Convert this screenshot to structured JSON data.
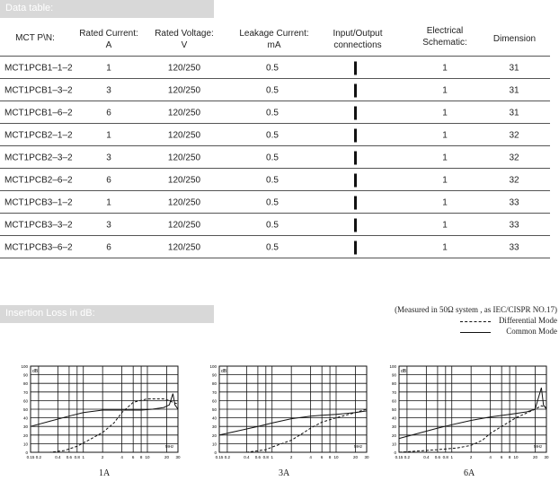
{
  "data_table": {
    "title": "Data table:",
    "headers": [
      {
        "line1": "MCT P\\N:",
        "line2": ""
      },
      {
        "line1": "Rated Current:",
        "line2": "A"
      },
      {
        "line1": "Rated Voltage:",
        "line2": "V"
      },
      {
        "line1": "Leakage  Current:",
        "line2": "mA"
      },
      {
        "line1": "Input/Output",
        "line2": "connections"
      },
      {
        "line1": "Electrical",
        "line2": "Schematic:"
      },
      {
        "line1": "Dimension",
        "line2": ""
      }
    ],
    "rows": [
      {
        "pn": "MCT1PCB1–1–2",
        "current": "1",
        "voltage": "120/250",
        "leakage": "0.5",
        "schematic": "1",
        "dimension": "31"
      },
      {
        "pn": "MCT1PCB1–3–2",
        "current": "3",
        "voltage": "120/250",
        "leakage": "0.5",
        "schematic": "1",
        "dimension": "31"
      },
      {
        "pn": "MCT1PCB1–6–2",
        "current": "6",
        "voltage": "120/250",
        "leakage": "0.5",
        "schematic": "1",
        "dimension": "31"
      },
      {
        "pn": "MCT1PCB2–1–2",
        "current": "1",
        "voltage": "120/250",
        "leakage": "0.5",
        "schematic": "1",
        "dimension": "32"
      },
      {
        "pn": "MCT1PCB2–3–2",
        "current": "3",
        "voltage": "120/250",
        "leakage": "0.5",
        "schematic": "1",
        "dimension": "32"
      },
      {
        "pn": "MCT1PCB2–6–2",
        "current": "6",
        "voltage": "120/250",
        "leakage": "0.5",
        "schematic": "1",
        "dimension": "32"
      },
      {
        "pn": "MCT1PCB3–1–2",
        "current": "1",
        "voltage": "120/250",
        "leakage": "0.5",
        "schematic": "1",
        "dimension": "33"
      },
      {
        "pn": "MCT1PCB3–3–2",
        "current": "3",
        "voltage": "120/250",
        "leakage": "0.5",
        "schematic": "1",
        "dimension": "33"
      },
      {
        "pn": "MCT1PCB3–6–2",
        "current": "6",
        "voltage": "120/250",
        "leakage": "0.5",
        "schematic": "1",
        "dimension": "33"
      }
    ]
  },
  "insertion_loss": {
    "title": "Insertion Loss in dB:",
    "measurement_note": "(Measured in 50Ω system , as IEC/CISPR NO.17)",
    "legend_differential": "Differential  Mode",
    "legend_common": "Common  Mode"
  },
  "colors": {
    "bar_bg": "#d8d8d8",
    "ink": "#111111"
  },
  "chart_data": [
    {
      "type": "line",
      "caption": "1A",
      "ylabel": "dB",
      "xunit": "MHz",
      "y_ticks": [
        "100",
        "90",
        "80",
        "70",
        "60",
        "50",
        "40",
        "30",
        "20",
        "10",
        "0"
      ],
      "x_ticks": [
        "0.15",
        "0.2",
        "0.4",
        "0.6",
        "0.8",
        "1",
        "2",
        "4",
        "6",
        "8",
        "10",
        "20",
        "30"
      ],
      "xlim": [
        0.15,
        30
      ],
      "ylim": [
        0,
        100
      ],
      "xscale": "log",
      "series": [
        {
          "mode": "common",
          "x": [
            0.15,
            0.3,
            0.6,
            1,
            2,
            4,
            8,
            12,
            18,
            22,
            25,
            27,
            30
          ],
          "y": [
            30,
            36,
            42,
            46,
            49,
            49,
            49,
            50,
            52,
            55,
            68,
            55,
            50
          ]
        },
        {
          "mode": "differential",
          "x": [
            0.15,
            0.3,
            0.5,
            0.8,
            1.2,
            2,
            3,
            4,
            6,
            10,
            18,
            22,
            25,
            30
          ],
          "y": [
            0,
            0,
            2,
            7,
            14,
            23,
            34,
            46,
            58,
            62,
            62,
            60,
            58,
            56
          ]
        }
      ]
    },
    {
      "type": "line",
      "caption": "3A",
      "ylabel": "dB",
      "xunit": "MHz",
      "y_ticks": [
        "100",
        "90",
        "80",
        "70",
        "60",
        "50",
        "40",
        "30",
        "20",
        "10",
        "0"
      ],
      "x_ticks": [
        "0.15",
        "0.2",
        "0.4",
        "0.6",
        "0.8",
        "1",
        "2",
        "4",
        "6",
        "8",
        "10",
        "20",
        "30"
      ],
      "xlim": [
        0.15,
        30
      ],
      "ylim": [
        0,
        100
      ],
      "xscale": "log",
      "series": [
        {
          "mode": "common",
          "x": [
            0.15,
            0.3,
            0.6,
            1,
            2,
            4,
            6,
            10,
            20,
            30
          ],
          "y": [
            20,
            25,
            30,
            34,
            39,
            42,
            43,
            44,
            46,
            48
          ]
        },
        {
          "mode": "differential",
          "x": [
            0.15,
            0.4,
            0.8,
            1,
            2,
            3,
            4,
            6,
            10,
            20,
            30
          ],
          "y": [
            0,
            0,
            3,
            6,
            14,
            22,
            28,
            35,
            40,
            46,
            50
          ]
        }
      ]
    },
    {
      "type": "line",
      "caption": "6A",
      "ylabel": "dB",
      "xunit": "MHz",
      "y_ticks": [
        "100",
        "90",
        "80",
        "70",
        "60",
        "50",
        "40",
        "30",
        "20",
        "10",
        "0"
      ],
      "x_ticks": [
        "0.15",
        "0.2",
        "0.4",
        "0.6",
        "0.8",
        "1",
        "2",
        "4",
        "6",
        "8",
        "10",
        "20",
        "30"
      ],
      "xlim": [
        0.15,
        30
      ],
      "ylim": [
        0,
        100
      ],
      "xscale": "log",
      "series": [
        {
          "mode": "common",
          "x": [
            0.15,
            0.3,
            0.6,
            1,
            2,
            4,
            8,
            15,
            20,
            25,
            27,
            30
          ],
          "y": [
            16,
            22,
            28,
            32,
            37,
            41,
            44,
            47,
            50,
            75,
            55,
            50
          ]
        },
        {
          "mode": "differential",
          "x": [
            0.15,
            0.6,
            1.2,
            2,
            3,
            4,
            6,
            10,
            20,
            25,
            30
          ],
          "y": [
            0,
            3,
            5,
            8,
            14,
            22,
            30,
            40,
            50,
            54,
            52
          ]
        }
      ]
    }
  ]
}
